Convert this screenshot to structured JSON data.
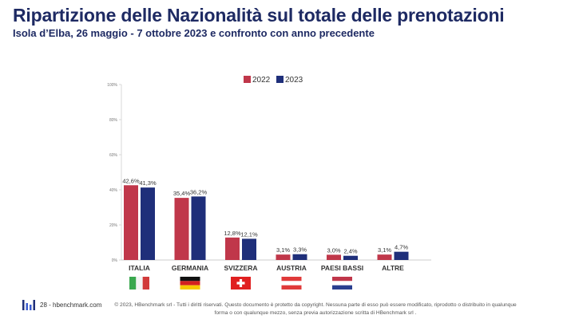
{
  "header": {
    "title": "Ripartizione delle Nazionalità sul totale delle prenotazioni",
    "subtitle": "Isola d’Elba, 26 maggio - 7 ottobre 2023 e confronto con anno precedente"
  },
  "chart_data": {
    "type": "bar",
    "categories": [
      "ITALIA",
      "GERMANIA",
      "SVIZZERA",
      "AUSTRIA",
      "PAESI BASSI",
      "ALTRE"
    ],
    "series": [
      {
        "name": "2022",
        "values": [
          42.6,
          35.4,
          12.8,
          3.1,
          3.0,
          3.1
        ],
        "labels": [
          "42,6%",
          "35,4%",
          "12,8%",
          "3,1%",
          "3,0%",
          "3,1%"
        ],
        "color": "#c0374a"
      },
      {
        "name": "2023",
        "values": [
          41.3,
          36.2,
          12.1,
          3.3,
          2.4,
          4.7
        ],
        "labels": [
          "41,3%",
          "36,2%",
          "12,1%",
          "3,3%",
          "2,4%",
          "4,7%"
        ],
        "color": "#1f2f7a"
      }
    ],
    "yticks": [
      "0%",
      "20%",
      "40%",
      "60%",
      "80%",
      "100%"
    ],
    "ylim": [
      0,
      100
    ],
    "legend_position": "top",
    "grid": false
  },
  "flags": [
    {
      "country": "ITALIA",
      "icon": "italy-flag-icon"
    },
    {
      "country": "GERMANIA",
      "icon": "germany-flag-icon"
    },
    {
      "country": "SVIZZERA",
      "icon": "switzerland-flag-icon"
    },
    {
      "country": "AUSTRIA",
      "icon": "austria-flag-icon"
    },
    {
      "country": "PAESI BASSI",
      "icon": "netherlands-flag-icon"
    }
  ],
  "footer": {
    "page_label": "28 - hbenchmark.com",
    "logo_icon": "hbenchmark-logo-icon",
    "copyright": "© 2023, HBenchmark srl - Tutti i diritti riservati. Questo documento è protetto da copyright. Nessuna parte di esso può essere modificato, riprodotto o distribuito in qualunque forma o con qualunque mezzo, senza previa autorizzazione scritta di HBenchmark srl ."
  }
}
